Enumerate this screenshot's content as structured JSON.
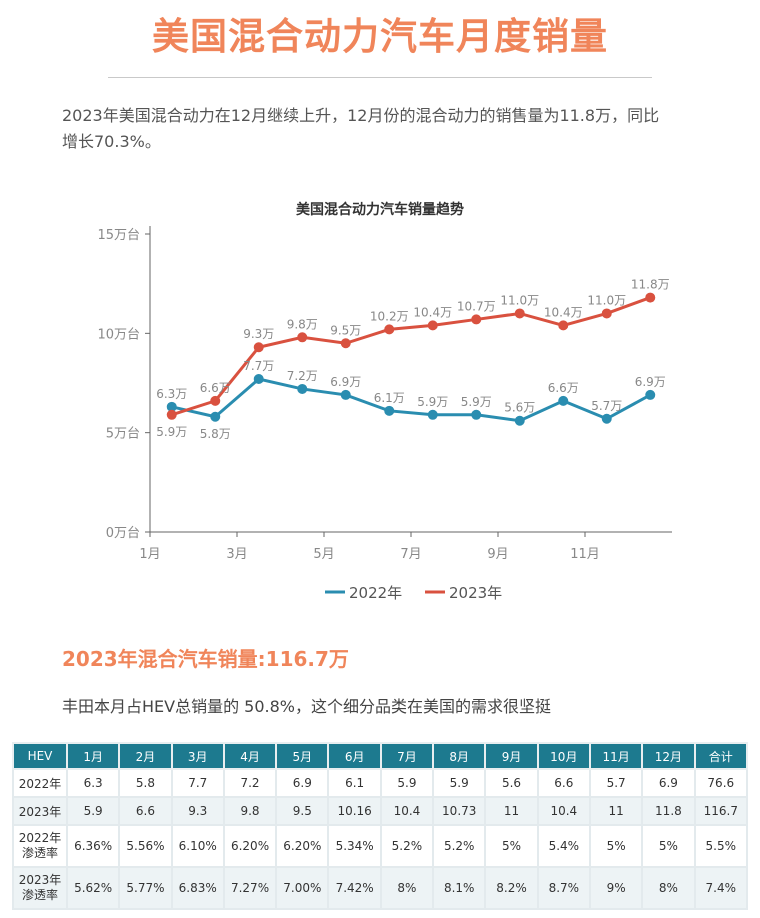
{
  "title": "美国混合动力汽车月度销量",
  "intro": "2023年美国混合动力在12月继续上升，12月份的混合动力的销售量为11.8万，同比增长70.3%。",
  "chart_data": {
    "type": "line",
    "title": "美国混合动力汽车销量趋势",
    "categories": [
      "1月",
      "2月",
      "3月",
      "4月",
      "5月",
      "6月",
      "7月",
      "8月",
      "9月",
      "10月",
      "11月",
      "12月"
    ],
    "x_tick_labels": [
      "1月",
      "3月",
      "5月",
      "7月",
      "9月",
      "11月"
    ],
    "y_tick_labels": [
      "0万台",
      "5万台",
      "10万台",
      "15万台"
    ],
    "ylim": [
      0,
      15
    ],
    "data_label_unit": "万",
    "grid": false,
    "legend": "bottom",
    "series": [
      {
        "name": "2022年",
        "color": "#2a8db0",
        "values": [
          6.3,
          5.8,
          7.7,
          7.2,
          6.9,
          6.1,
          5.9,
          5.9,
          5.6,
          6.6,
          5.7,
          6.9
        ]
      },
      {
        "name": "2023年",
        "color": "#d9513f",
        "values": [
          5.9,
          6.6,
          9.3,
          9.8,
          9.5,
          10.2,
          10.4,
          10.7,
          11.0,
          10.4,
          11.0,
          11.8
        ]
      }
    ]
  },
  "subheading": "2023年混合汽车销量:116.7万",
  "note": "丰田本月占HEV总销量的 50.8%，这个细分品类在美国的需求很坚挺",
  "table": {
    "headers": [
      "HEV",
      "1月",
      "2月",
      "3月",
      "4月",
      "5月",
      "6月",
      "7月",
      "8月",
      "9月",
      "10月",
      "11月",
      "12月",
      "合计"
    ],
    "rows": [
      [
        "2022年",
        "6.3",
        "5.8",
        "7.7",
        "7.2",
        "6.9",
        "6.1",
        "5.9",
        "5.9",
        "5.6",
        "6.6",
        "5.7",
        "6.9",
        "76.6"
      ],
      [
        "2023年",
        "5.9",
        "6.6",
        "9.3",
        "9.8",
        "9.5",
        "10.16",
        "10.4",
        "10.73",
        "11",
        "10.4",
        "11",
        "11.8",
        "116.7"
      ],
      [
        "2022年\n渗透率",
        "6.36%",
        "5.56%",
        "6.10%",
        "6.20%",
        "6.20%",
        "5.34%",
        "5.2%",
        "5.2%",
        "5%",
        "5.4%",
        "5%",
        "5%",
        "5.5%"
      ],
      [
        "2023年\n渗透率",
        "5.62%",
        "5.77%",
        "6.83%",
        "7.27%",
        "7.00%",
        "7.42%",
        "8%",
        "8.1%",
        "8.2%",
        "8.7%",
        "9%",
        "8%",
        "7.4%"
      ]
    ]
  }
}
